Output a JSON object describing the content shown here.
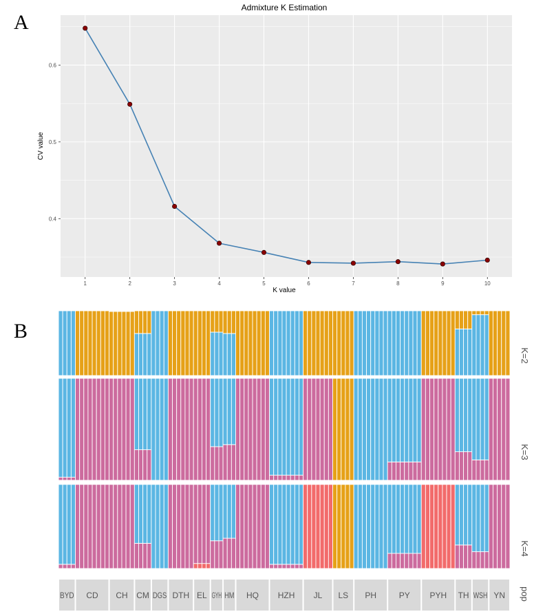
{
  "panels": {
    "a_label": "A",
    "b_label": "B"
  },
  "colors": {
    "plot_bg": "#ebebeb",
    "grid": "#ffffff",
    "line": "#4682b4",
    "point": "#8b0000",
    "blue": "#5bb6e3",
    "orange": "#e6a118",
    "pink": "#cc6b9e",
    "red": "#f26b6b",
    "strip": "#d9d9d9"
  },
  "chart_data": [
    {
      "type": "line",
      "title": "Admixture K Estimation",
      "xlabel": "K value",
      "ylabel": "CV value",
      "x": [
        1,
        2,
        3,
        4,
        5,
        6,
        7,
        8,
        9,
        10
      ],
      "y": [
        0.648,
        0.549,
        0.416,
        0.368,
        0.356,
        0.343,
        0.342,
        0.344,
        0.341,
        0.346
      ],
      "xticks": [
        "1",
        "2",
        "3",
        "4",
        "5",
        "6",
        "7",
        "8",
        "9",
        "10"
      ],
      "yticks": [
        "0.4",
        "0.5",
        "0.6"
      ],
      "xlim": [
        0.45,
        10.55
      ],
      "ylim": [
        0.324,
        0.665
      ]
    },
    {
      "type": "bar",
      "subtype": "stacked-ancestry",
      "facet_labels": [
        "K=2",
        "K=3",
        "K=4"
      ],
      "pop_label": "pop",
      "populations": [
        {
          "name": "BYD",
          "n": 4
        },
        {
          "name": "CD",
          "n": 8
        },
        {
          "name": "CH",
          "n": 6
        },
        {
          "name": "CM",
          "n": 4
        },
        {
          "name": "DGS",
          "n": 4
        },
        {
          "name": "DTH",
          "n": 6
        },
        {
          "name": "EL",
          "n": 4
        },
        {
          "name": "GYH",
          "n": 3
        },
        {
          "name": "HM",
          "n": 3
        },
        {
          "name": "HQ",
          "n": 8
        },
        {
          "name": "HZH",
          "n": 8
        },
        {
          "name": "JL",
          "n": 7
        },
        {
          "name": "LS",
          "n": 5
        },
        {
          "name": "PH",
          "n": 8
        },
        {
          "name": "PY",
          "n": 8
        },
        {
          "name": "PYH",
          "n": 8
        },
        {
          "name": "TH",
          "n": 4
        },
        {
          "name": "WSH",
          "n": 4
        },
        {
          "name": "YN",
          "n": 5
        }
      ],
      "ancestry": {
        "K=2": [
          {
            "pop": "BYD",
            "segs": [
              [
                "blue",
                1
              ]
            ]
          },
          {
            "pop": "CD",
            "segs": [
              [
                "orange",
                1
              ]
            ]
          },
          {
            "pop": "CH",
            "segs": [
              [
                "orange",
                0.99
              ],
              [
                "blue",
                0.01
              ]
            ]
          },
          {
            "pop": "CM",
            "segs": [
              [
                "blue",
                0.65
              ],
              [
                "orange",
                0.35
              ]
            ]
          },
          {
            "pop": "DGS",
            "segs": [
              [
                "blue",
                1
              ]
            ]
          },
          {
            "pop": "DTH",
            "segs": [
              [
                "orange",
                1
              ]
            ]
          },
          {
            "pop": "EL",
            "segs": [
              [
                "orange",
                1
              ]
            ]
          },
          {
            "pop": "GYH",
            "segs": [
              [
                "blue",
                0.67
              ],
              [
                "orange",
                0.33
              ]
            ]
          },
          {
            "pop": "HM",
            "segs": [
              [
                "blue",
                0.65
              ],
              [
                "orange",
                0.35
              ]
            ]
          },
          {
            "pop": "HQ",
            "segs": [
              [
                "orange",
                1
              ]
            ]
          },
          {
            "pop": "HZH",
            "segs": [
              [
                "blue",
                1
              ]
            ]
          },
          {
            "pop": "JL",
            "segs": [
              [
                "orange",
                1
              ]
            ]
          },
          {
            "pop": "LS",
            "segs": [
              [
                "orange",
                1
              ]
            ]
          },
          {
            "pop": "PH",
            "segs": [
              [
                "blue",
                1
              ]
            ]
          },
          {
            "pop": "PY",
            "segs": [
              [
                "blue",
                1
              ]
            ]
          },
          {
            "pop": "PYH",
            "segs": [
              [
                "orange",
                1
              ]
            ]
          },
          {
            "pop": "TH",
            "segs": [
              [
                "blue",
                0.72
              ],
              [
                "orange",
                0.28
              ]
            ]
          },
          {
            "pop": "WSH",
            "segs": [
              [
                "blue",
                0.94
              ],
              [
                "orange",
                0.06
              ]
            ]
          },
          {
            "pop": "YN",
            "segs": [
              [
                "orange",
                1
              ]
            ]
          }
        ],
        "K=3": [
          {
            "pop": "BYD",
            "segs": [
              [
                "pink",
                0.03
              ],
              [
                "blue",
                0.97
              ]
            ]
          },
          {
            "pop": "CD",
            "segs": [
              [
                "pink",
                1
              ]
            ]
          },
          {
            "pop": "CH",
            "segs": [
              [
                "pink",
                1
              ]
            ]
          },
          {
            "pop": "CM",
            "segs": [
              [
                "pink",
                0.3
              ],
              [
                "blue",
                0.7
              ]
            ]
          },
          {
            "pop": "DGS",
            "segs": [
              [
                "blue",
                1
              ]
            ]
          },
          {
            "pop": "DTH",
            "segs": [
              [
                "pink",
                1
              ]
            ]
          },
          {
            "pop": "EL",
            "segs": [
              [
                "pink",
                1
              ]
            ]
          },
          {
            "pop": "GYH",
            "segs": [
              [
                "pink",
                0.33
              ],
              [
                "blue",
                0.67
              ]
            ]
          },
          {
            "pop": "HM",
            "segs": [
              [
                "pink",
                0.35
              ],
              [
                "blue",
                0.65
              ]
            ]
          },
          {
            "pop": "HQ",
            "segs": [
              [
                "pink",
                1
              ]
            ]
          },
          {
            "pop": "HZH",
            "segs": [
              [
                "pink",
                0.05
              ],
              [
                "blue",
                0.95
              ]
            ]
          },
          {
            "pop": "JL",
            "segs": [
              [
                "pink",
                1
              ]
            ]
          },
          {
            "pop": "LS",
            "segs": [
              [
                "orange",
                1
              ]
            ]
          },
          {
            "pop": "PH",
            "segs": [
              [
                "blue",
                1
              ]
            ]
          },
          {
            "pop": "PY",
            "segs": [
              [
                "pink",
                0.18
              ],
              [
                "blue",
                0.82
              ]
            ]
          },
          {
            "pop": "PYH",
            "segs": [
              [
                "pink",
                1
              ]
            ]
          },
          {
            "pop": "TH",
            "segs": [
              [
                "pink",
                0.28
              ],
              [
                "blue",
                0.72
              ]
            ]
          },
          {
            "pop": "WSH",
            "segs": [
              [
                "pink",
                0.2
              ],
              [
                "blue",
                0.8
              ]
            ]
          },
          {
            "pop": "YN",
            "segs": [
              [
                "pink",
                1
              ]
            ]
          }
        ],
        "K=4": [
          {
            "pop": "BYD",
            "segs": [
              [
                "pink",
                0.05
              ],
              [
                "blue",
                0.95
              ]
            ]
          },
          {
            "pop": "CD",
            "segs": [
              [
                "pink",
                1
              ]
            ]
          },
          {
            "pop": "CH",
            "segs": [
              [
                "pink",
                1
              ]
            ]
          },
          {
            "pop": "CM",
            "segs": [
              [
                "pink",
                0.3
              ],
              [
                "blue",
                0.7
              ]
            ]
          },
          {
            "pop": "DGS",
            "segs": [
              [
                "blue",
                1
              ]
            ]
          },
          {
            "pop": "DTH",
            "segs": [
              [
                "pink",
                1
              ]
            ]
          },
          {
            "pop": "EL",
            "segs": [
              [
                "red",
                0.06
              ],
              [
                "pink",
                0.94
              ]
            ]
          },
          {
            "pop": "GYH",
            "segs": [
              [
                "pink",
                0.33
              ],
              [
                "blue",
                0.67
              ]
            ]
          },
          {
            "pop": "HM",
            "segs": [
              [
                "pink",
                0.36
              ],
              [
                "blue",
                0.64
              ]
            ]
          },
          {
            "pop": "HQ",
            "segs": [
              [
                "pink",
                1
              ]
            ]
          },
          {
            "pop": "HZH",
            "segs": [
              [
                "pink",
                0.05
              ],
              [
                "blue",
                0.95
              ]
            ]
          },
          {
            "pop": "JL",
            "segs": [
              [
                "red",
                1
              ]
            ]
          },
          {
            "pop": "LS",
            "segs": [
              [
                "orange",
                1
              ]
            ]
          },
          {
            "pop": "PH",
            "segs": [
              [
                "blue",
                1
              ]
            ]
          },
          {
            "pop": "PY",
            "segs": [
              [
                "pink",
                0.18
              ],
              [
                "blue",
                0.82
              ]
            ]
          },
          {
            "pop": "PYH",
            "segs": [
              [
                "red",
                1
              ]
            ]
          },
          {
            "pop": "TH",
            "segs": [
              [
                "pink",
                0.28
              ],
              [
                "blue",
                0.72
              ]
            ]
          },
          {
            "pop": "WSH",
            "segs": [
              [
                "pink",
                0.2
              ],
              [
                "blue",
                0.8
              ]
            ]
          },
          {
            "pop": "YN",
            "segs": [
              [
                "pink",
                1
              ]
            ]
          }
        ]
      }
    }
  ]
}
